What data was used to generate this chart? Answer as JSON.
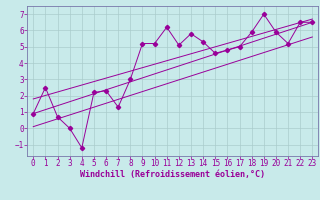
{
  "xlabel": "Windchill (Refroidissement éolien,°C)",
  "bg_color": "#c8eaea",
  "line_color": "#990099",
  "spine_color": "#7777aa",
  "grid_color": "#aacccc",
  "xlim": [
    -0.5,
    23.5
  ],
  "ylim": [
    -1.7,
    7.5
  ],
  "xticks": [
    0,
    1,
    2,
    3,
    4,
    5,
    6,
    7,
    8,
    9,
    10,
    11,
    12,
    13,
    14,
    15,
    16,
    17,
    18,
    19,
    20,
    21,
    22,
    23
  ],
  "yticks": [
    -1,
    0,
    1,
    2,
    3,
    4,
    5,
    6,
    7
  ],
  "data_line_x": [
    0,
    1,
    2,
    3,
    4,
    5,
    6,
    7,
    8,
    9,
    10,
    11,
    12,
    13,
    14,
    15,
    16,
    17,
    18,
    19,
    20,
    21,
    22,
    23
  ],
  "data_line_y": [
    0.9,
    2.5,
    0.7,
    0.0,
    -1.2,
    2.2,
    2.3,
    1.3,
    3.0,
    5.2,
    5.2,
    6.2,
    5.1,
    5.8,
    5.3,
    4.6,
    4.8,
    5.0,
    5.9,
    7.0,
    5.9,
    5.2,
    6.5,
    6.5
  ],
  "straight_lines": [
    {
      "x": [
        0,
        23
      ],
      "y": [
        0.9,
        6.5
      ]
    },
    {
      "x": [
        0,
        23
      ],
      "y": [
        1.8,
        6.7
      ]
    },
    {
      "x": [
        0,
        23
      ],
      "y": [
        0.1,
        5.6
      ]
    }
  ],
  "tick_fontsize": 5.5,
  "xlabel_fontsize": 6.0
}
